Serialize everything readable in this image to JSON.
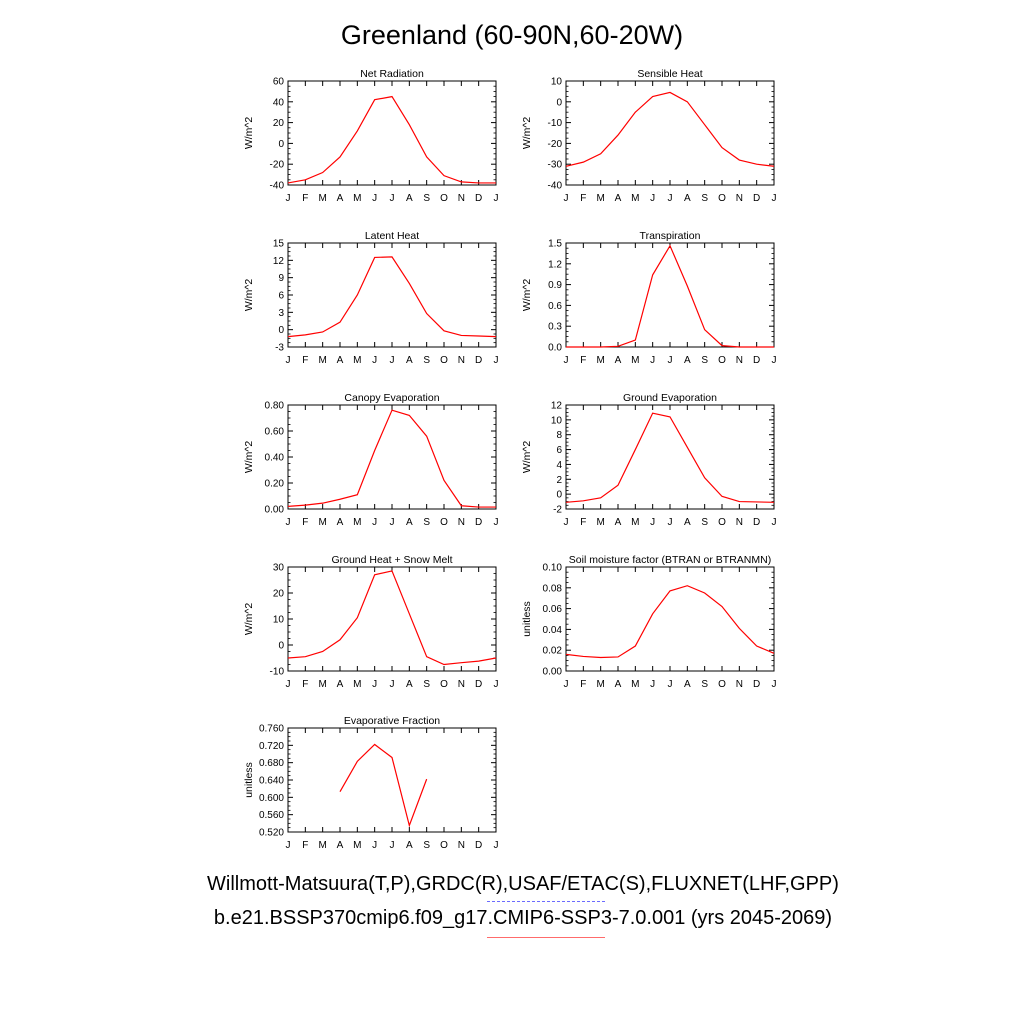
{
  "title": "Greenland (60-90N,60-20W)",
  "legend": {
    "observations": "Willmott-Matsuura(T,P),GRDC(R),USAF/ETAC(S),FLUXNET(LHF,GPP)",
    "model": "b.e21.BSSP370cmip6.f09_g17.CMIP6-SSP3-7.0.001 (yrs 2045-2069)",
    "observations_color": "#6b6bff",
    "model_color": "#ff0000"
  },
  "chart_data": [
    {
      "type": "line",
      "title": "Net Radiation",
      "ylabel": "W/m^2",
      "x": [
        "J",
        "F",
        "M",
        "A",
        "M",
        "J",
        "J",
        "A",
        "S",
        "O",
        "N",
        "D",
        "J"
      ],
      "ylim": [
        -40,
        60
      ],
      "yticks": [
        "-40",
        "-20",
        "0",
        "20",
        "40",
        "60"
      ],
      "series": [
        {
          "values": [
            -38,
            -35,
            -28,
            -13,
            12,
            42,
            45,
            18,
            -13,
            -31,
            -37,
            -38,
            -38
          ]
        }
      ]
    },
    {
      "type": "line",
      "title": "Sensible Heat",
      "ylabel": "W/m^2",
      "x": [
        "J",
        "F",
        "M",
        "A",
        "M",
        "J",
        "J",
        "A",
        "S",
        "O",
        "N",
        "D",
        "J"
      ],
      "ylim": [
        -40,
        10
      ],
      "yticks": [
        "-40",
        "-30",
        "-20",
        "-10",
        "0",
        "10"
      ],
      "series": [
        {
          "values": [
            -31,
            -29,
            -25,
            -16,
            -5,
            2.5,
            4.5,
            0,
            -11,
            -22,
            -28,
            -30,
            -31
          ]
        }
      ]
    },
    {
      "type": "line",
      "title": "Latent Heat",
      "ylabel": "W/m^2",
      "x": [
        "J",
        "F",
        "M",
        "A",
        "M",
        "J",
        "J",
        "A",
        "S",
        "O",
        "N",
        "D",
        "J"
      ],
      "ylim": [
        -3,
        15
      ],
      "yticks": [
        "-3",
        "0",
        "3",
        "6",
        "9",
        "12",
        "15"
      ],
      "series": [
        {
          "values": [
            -1.2,
            -0.9,
            -0.4,
            1.3,
            6,
            12.5,
            12.6,
            8,
            2.8,
            -0.2,
            -1,
            -1.1,
            -1.2
          ]
        }
      ]
    },
    {
      "type": "line",
      "title": "Transpiration",
      "ylabel": "W/m^2",
      "x": [
        "J",
        "F",
        "M",
        "A",
        "M",
        "J",
        "J",
        "A",
        "S",
        "O",
        "N",
        "D",
        "J"
      ],
      "ylim": [
        0,
        1.5
      ],
      "yticks": [
        "0.0",
        "0.3",
        "0.6",
        "0.9",
        "1.2",
        "1.5"
      ],
      "series": [
        {
          "values": [
            0,
            0,
            0,
            0.01,
            0.1,
            1.04,
            1.46,
            0.88,
            0.25,
            0.02,
            0,
            0,
            0
          ]
        }
      ]
    },
    {
      "type": "line",
      "title": "Canopy Evaporation",
      "ylabel": "W/m^2",
      "x": [
        "J",
        "F",
        "M",
        "A",
        "M",
        "J",
        "J",
        "A",
        "S",
        "O",
        "N",
        "D",
        "J"
      ],
      "ylim": [
        0,
        0.8
      ],
      "yticks": [
        "0.00",
        "0.20",
        "0.40",
        "0.60",
        "0.80"
      ],
      "series": [
        {
          "values": [
            0.02,
            0.03,
            0.045,
            0.075,
            0.11,
            0.45,
            0.76,
            0.72,
            0.56,
            0.22,
            0.025,
            0.015,
            0.015
          ]
        }
      ]
    },
    {
      "type": "line",
      "title": "Ground Evaporation",
      "ylabel": "W/m^2",
      "x": [
        "J",
        "F",
        "M",
        "A",
        "M",
        "J",
        "J",
        "A",
        "S",
        "O",
        "N",
        "D",
        "J"
      ],
      "ylim": [
        -2,
        12
      ],
      "yticks": [
        "-2",
        "0",
        "2",
        "4",
        "6",
        "8",
        "10",
        "12"
      ],
      "series": [
        {
          "values": [
            -1.1,
            -0.9,
            -0.5,
            1.2,
            6,
            10.9,
            10.4,
            6.3,
            2.2,
            -0.3,
            -1,
            -1.05,
            -1.1
          ]
        }
      ]
    },
    {
      "type": "line",
      "title": "Ground Heat + Snow Melt",
      "ylabel": "W/m^2",
      "x": [
        "J",
        "F",
        "M",
        "A",
        "M",
        "J",
        "J",
        "A",
        "S",
        "O",
        "N",
        "D",
        "J"
      ],
      "ylim": [
        -10,
        30
      ],
      "yticks": [
        "-10",
        "0",
        "10",
        "20",
        "30"
      ],
      "series": [
        {
          "values": [
            -5,
            -4.5,
            -2.5,
            2,
            10.5,
            27,
            28.5,
            12,
            -4.5,
            -7.5,
            -6.8,
            -6.2,
            -5
          ]
        }
      ]
    },
    {
      "type": "line",
      "title": "Soil moisture factor (BTRAN or BTRANMN)",
      "ylabel": "unitless",
      "x": [
        "J",
        "F",
        "M",
        "A",
        "M",
        "J",
        "J",
        "A",
        "S",
        "O",
        "N",
        "D",
        "J"
      ],
      "ylim": [
        0,
        0.1
      ],
      "yticks": [
        "0.00",
        "0.02",
        "0.04",
        "0.06",
        "0.08",
        "0.10"
      ],
      "series": [
        {
          "values": [
            0.016,
            0.014,
            0.013,
            0.0135,
            0.024,
            0.055,
            0.077,
            0.082,
            0.075,
            0.062,
            0.041,
            0.024,
            0.017
          ]
        }
      ]
    },
    {
      "type": "line",
      "title": "Evaporative Fraction",
      "ylabel": "unitless",
      "x": [
        "J",
        "F",
        "M",
        "A",
        "M",
        "J",
        "J",
        "A",
        "S",
        "O",
        "N",
        "D",
        "J"
      ],
      "ylim": [
        0.52,
        0.76
      ],
      "yticks": [
        "0.520",
        "0.560",
        "0.600",
        "0.640",
        "0.680",
        "0.720",
        "0.760"
      ],
      "series": [
        {
          "values": [
            null,
            null,
            null,
            0.613,
            0.683,
            0.722,
            0.692,
            0.535,
            0.642,
            null,
            null,
            null,
            null
          ]
        }
      ]
    }
  ]
}
